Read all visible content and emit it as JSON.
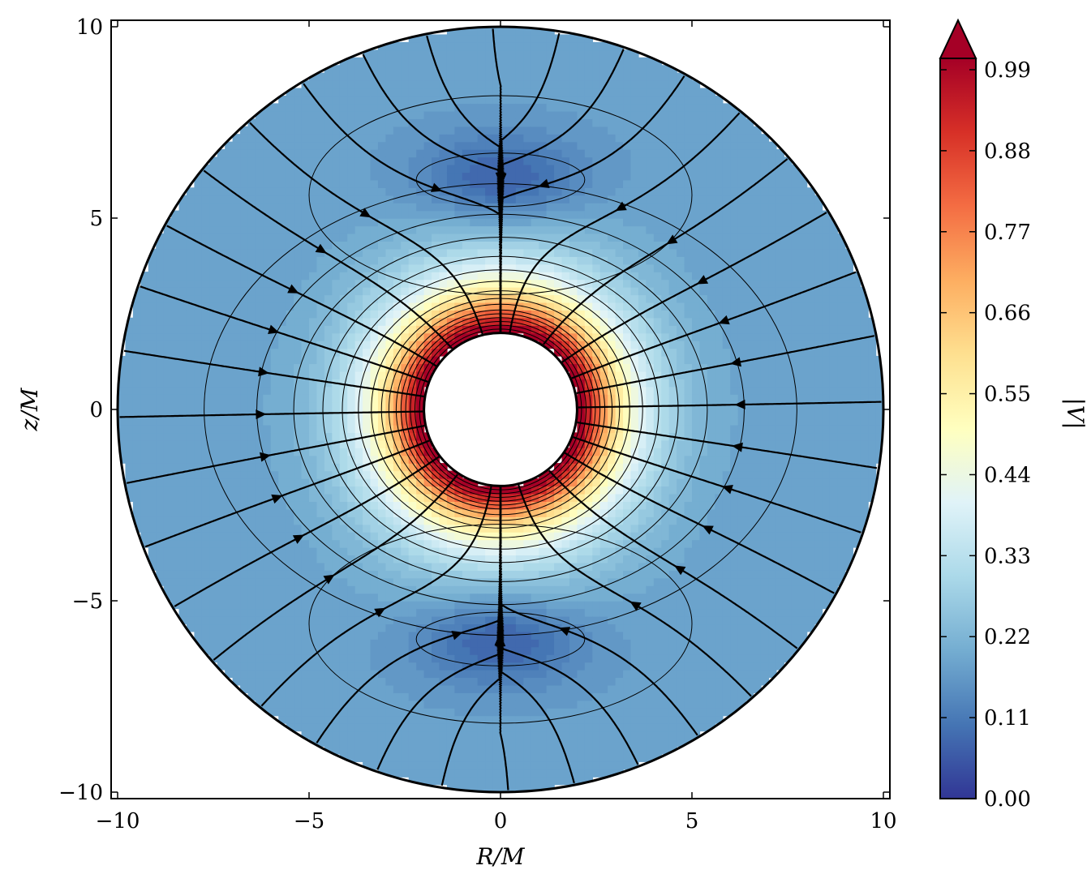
{
  "chart_data": {
    "type": "contour",
    "xlabel": "R/M",
    "ylabel": "z/M",
    "xlim": [
      -10.2,
      10.2
    ],
    "ylim": [
      -10.2,
      10.2
    ],
    "xticks": [
      -10,
      -5,
      0,
      5,
      10
    ],
    "yticks": [
      -10,
      -5,
      0,
      5,
      10
    ],
    "xtick_labels": [
      "−10",
      "−5",
      "0",
      "5",
      "10"
    ],
    "ytick_labels": [
      "−10",
      "−5",
      "0",
      "5",
      "10"
    ],
    "inner_radius": 2,
    "outer_radius": 10,
    "colorbar": {
      "label": "|V|",
      "colormap": "RdYlBu_r",
      "range": [
        0.0,
        0.99
      ],
      "ticks": [
        0.0,
        0.11,
        0.22,
        0.33,
        0.44,
        0.55,
        0.66,
        0.77,
        0.88,
        0.99
      ],
      "tick_labels": [
        "0.00",
        "0.11",
        "0.22",
        "0.33",
        "0.44",
        "0.55",
        "0.66",
        "0.77",
        "0.88",
        "0.99"
      ],
      "extend": "max"
    },
    "colors": {
      "low": "#313695",
      "mid": "#ffffbf",
      "high": "#a50026"
    },
    "grid": false
  }
}
